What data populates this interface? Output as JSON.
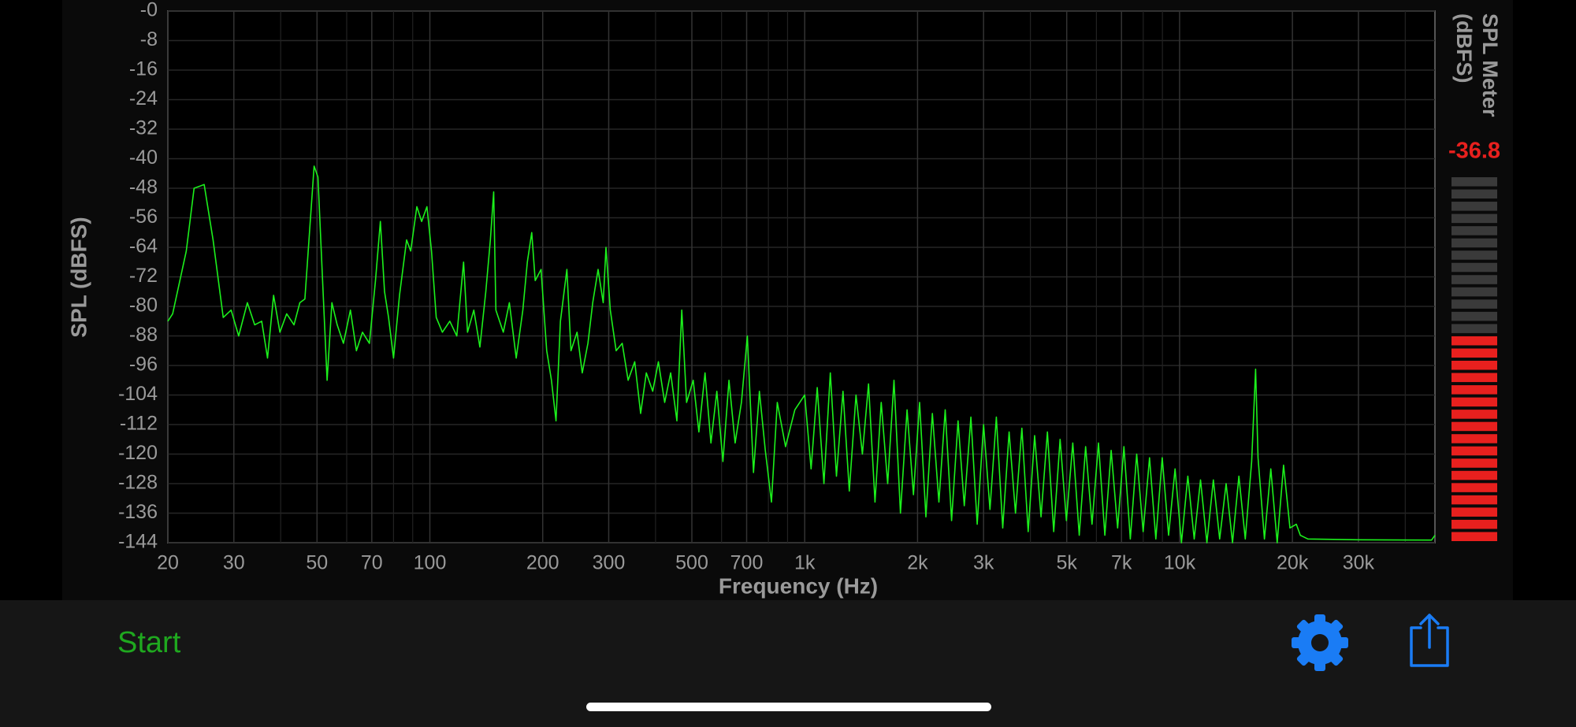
{
  "chart_data": {
    "type": "line",
    "xlabel": "Frequency (Hz)",
    "ylabel": "SPL (dBFS)",
    "xscale": "log",
    "grid": true,
    "color": "#1cf01c",
    "xlim": [
      20,
      48000
    ],
    "ylim": [
      -144,
      0
    ],
    "xticks": [
      20,
      30,
      50,
      70,
      100,
      200,
      300,
      500,
      700,
      {
        "value": 1000,
        "label": "1k"
      },
      {
        "value": 2000,
        "label": "2k"
      },
      {
        "value": 3000,
        "label": "3k"
      },
      {
        "value": 5000,
        "label": "5k"
      },
      {
        "value": 7000,
        "label": "7k"
      },
      {
        "value": 10000,
        "label": "10k"
      },
      {
        "value": 20000,
        "label": "20k"
      },
      {
        "value": 30000,
        "label": "30k"
      }
    ],
    "x_minor_grid": [
      40,
      60,
      80,
      90,
      400,
      600,
      800,
      900,
      4000,
      6000,
      8000,
      9000,
      40000
    ],
    "yticks": [
      {
        "value": 0,
        "label": "-0"
      },
      -8,
      -16,
      -24,
      -32,
      -40,
      -48,
      -56,
      -64,
      -72,
      -80,
      -88,
      -96,
      -104,
      -112,
      -120,
      -128,
      -136,
      -144
    ],
    "x": [
      20,
      20.6,
      22.4,
      23.5,
      25,
      26.4,
      28.1,
      29.5,
      30.9,
      32.6,
      34.1,
      35.6,
      36.9,
      38.3,
      39.8,
      41.5,
      43.4,
      45,
      46.4,
      49.1,
      50.3,
      51.9,
      53.2,
      54.8,
      56.6,
      58.8,
      61.4,
      63.7,
      66.1,
      69,
      71.6,
      73.8,
      75.7,
      77.6,
      80,
      83,
      86.7,
      88.9,
      92.3,
      95.1,
      98.2,
      101,
      104,
      108,
      113,
      118,
      123,
      126,
      131,
      136,
      141,
      145,
      148,
      150,
      157,
      163,
      170,
      177,
      182,
      187,
      191,
      198,
      205,
      211,
      217,
      223,
      232,
      238,
      247,
      255,
      264,
      272,
      281,
      290,
      295,
      303,
      314,
      326,
      338,
      352,
      365,
      378,
      393,
      407,
      423,
      439,
      456,
      470,
      484,
      504,
      522,
      542,
      562,
      583,
      605,
      628,
      652,
      678,
      703,
      730,
      757,
      785,
      815,
      845,
      889,
      941,
      1000,
      1040,
      1080,
      1125,
      1170,
      1215,
      1265,
      1315,
      1370,
      1425,
      1480,
      1540,
      1600,
      1665,
      1730,
      1800,
      1875,
      1950,
      2025,
      2105,
      2190,
      2280,
      2370,
      2465,
      2565,
      2665,
      2775,
      2885,
      3000,
      3120,
      3245,
      3375,
      3510,
      3650,
      3795,
      3945,
      4105,
      4270,
      4440,
      4615,
      4800,
      4990,
      5190,
      5400,
      5615,
      5840,
      6075,
      6320,
      6570,
      6835,
      7105,
      7390,
      7685,
      7995,
      8315,
      8645,
      8990,
      9350,
      9725,
      10115,
      10520,
      10940,
      11375,
      11830,
      12305,
      12795,
      13310,
      13840,
      14395,
      14970,
      15570,
      15950,
      16190,
      16840,
      17510,
      18210,
      18940,
      19700,
      20490,
      21000,
      22000,
      30000,
      47000,
      48000
    ],
    "values": [
      -84,
      -82,
      -65,
      -48,
      -47,
      -62,
      -83,
      -81,
      -88,
      -79,
      -85,
      -84,
      -94,
      -77,
      -87,
      -82,
      -85,
      -79,
      -78,
      -42,
      -45,
      -76,
      -100,
      -79,
      -85,
      -90,
      -81,
      -92,
      -87,
      -90,
      -73,
      -57,
      -76,
      -83,
      -94,
      -77,
      -62,
      -65,
      -53,
      -57,
      -53,
      -65,
      -83,
      -87,
      -84,
      -88,
      -68,
      -87,
      -81,
      -91,
      -76,
      -62,
      -49,
      -81,
      -87,
      -79,
      -94,
      -81,
      -68,
      -60,
      -73,
      -70,
      -92,
      -100,
      -111,
      -84,
      -70,
      -92,
      -87,
      -98,
      -90,
      -79,
      -70,
      -79,
      -64,
      -81,
      -92,
      -90,
      -100,
      -95,
      -109,
      -98,
      -103,
      -95,
      -106,
      -98,
      -111,
      -81,
      -106,
      -100,
      -114,
      -98,
      -117,
      -103,
      -122,
      -100,
      -117,
      -106,
      -88,
      -125,
      -103,
      -119,
      -133,
      -106,
      -118,
      -108,
      -104,
      -124,
      -102,
      -128,
      -98,
      -126,
      -103,
      -130,
      -104,
      -120,
      -101,
      -133,
      -106,
      -128,
      -100,
      -136,
      -108,
      -131,
      -106,
      -137,
      -109,
      -133,
      -108,
      -138,
      -111,
      -134,
      -110,
      -139,
      -112,
      -135,
      -110,
      -140,
      -114,
      -136,
      -113,
      -141,
      -115,
      -137,
      -114,
      -141,
      -116,
      -138,
      -117,
      -142,
      -118,
      -139,
      -117,
      -142,
      -119,
      -140,
      -118,
      -143,
      -120,
      -141,
      -121,
      -143,
      -121,
      -142,
      -124,
      -144,
      -126,
      -143,
      -127,
      -144,
      -127,
      -143,
      -128,
      -144,
      -126,
      -143,
      -122,
      -97,
      -121,
      -143,
      -124,
      -144,
      -123,
      -140,
      -139,
      -142,
      -143,
      -143.2,
      -143.3,
      -142
    ]
  },
  "meter": {
    "title": [
      "SPL Meter",
      "(dBFS)"
    ],
    "value": -36.8,
    "lim": [
      -85,
      0
    ],
    "color": "#e8201e"
  },
  "toolbar": {
    "start": "Start"
  }
}
